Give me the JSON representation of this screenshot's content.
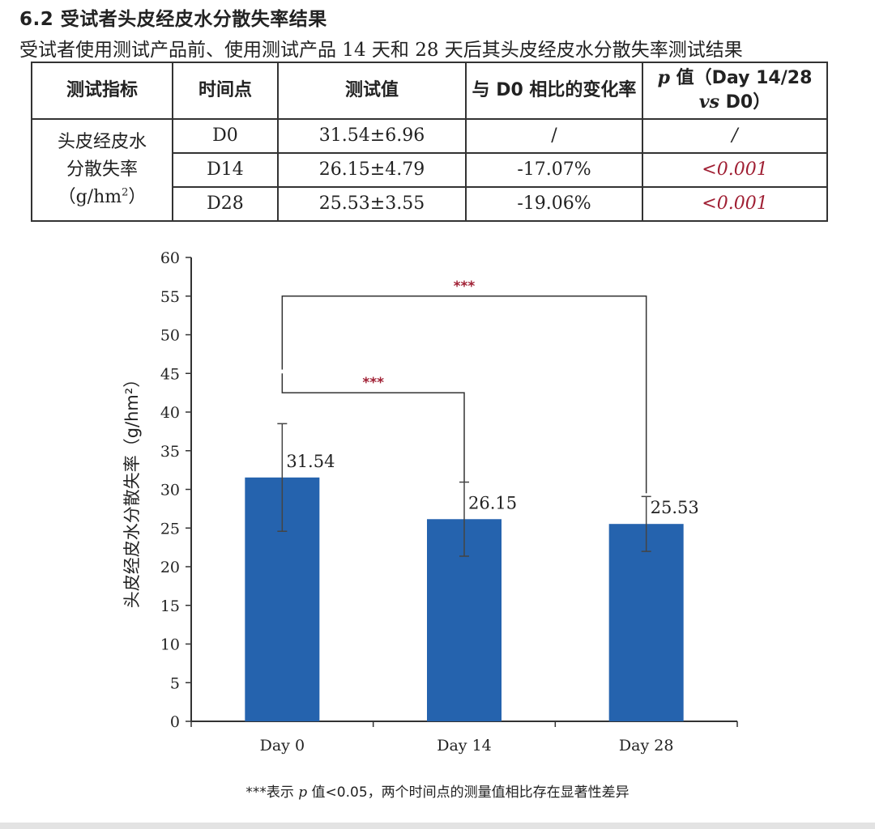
{
  "heading": "6.2 受试者头皮经皮水分散失率结果",
  "intro": "受试者使用测试产品前、使用测试产品 14 天和 28 天后其头皮经皮水分散失率测试结果",
  "table": {
    "headers": [
      "测试指标",
      "时间点",
      "测试值",
      "与 D0 相比的变化率"
    ],
    "p_header": {
      "p": "p",
      "text": " 值（Day 14/28",
      "vs": "vs",
      "d0": " D0）"
    },
    "metric": {
      "line1": "头皮经皮水",
      "line2": "分散失率",
      "unit_pre": "（g/hm",
      "unit_sup": "2",
      "unit_post": "）"
    },
    "rows": [
      {
        "time": "D0",
        "value": "31.54±6.96",
        "change": "/",
        "p": "/"
      },
      {
        "time": "D14",
        "value": "26.15±4.79",
        "change": "-17.07%",
        "p": "<0.001"
      },
      {
        "time": "D28",
        "value": "25.53±3.55",
        "change": "-19.06%",
        "p": "<0.001"
      }
    ]
  },
  "chart_data": {
    "type": "bar",
    "categories": [
      "Day 0",
      "Day 14",
      "Day 28"
    ],
    "values": [
      31.54,
      26.15,
      25.53
    ],
    "errors": [
      6.96,
      4.79,
      3.55
    ],
    "value_labels": [
      "31.54",
      "26.15",
      "25.53"
    ],
    "ylabel": "头皮经皮水分散失率（g/hm²）",
    "ylim": [
      0,
      60
    ],
    "yticks": [
      0,
      5,
      10,
      15,
      20,
      25,
      30,
      35,
      40,
      45,
      50,
      55,
      60
    ],
    "bar_color": "#2563ae",
    "significance": [
      {
        "from": "Day 0",
        "to": "Day 14",
        "label": "***"
      },
      {
        "from": "Day 0",
        "to": "Day 28",
        "label": "***"
      }
    ],
    "significance_color": "#a02034"
  },
  "footnote": {
    "stars": "***表示 ",
    "p": "p",
    "rest": " 值<0.05，两个时间点的测量值相比存在显著性差异"
  }
}
